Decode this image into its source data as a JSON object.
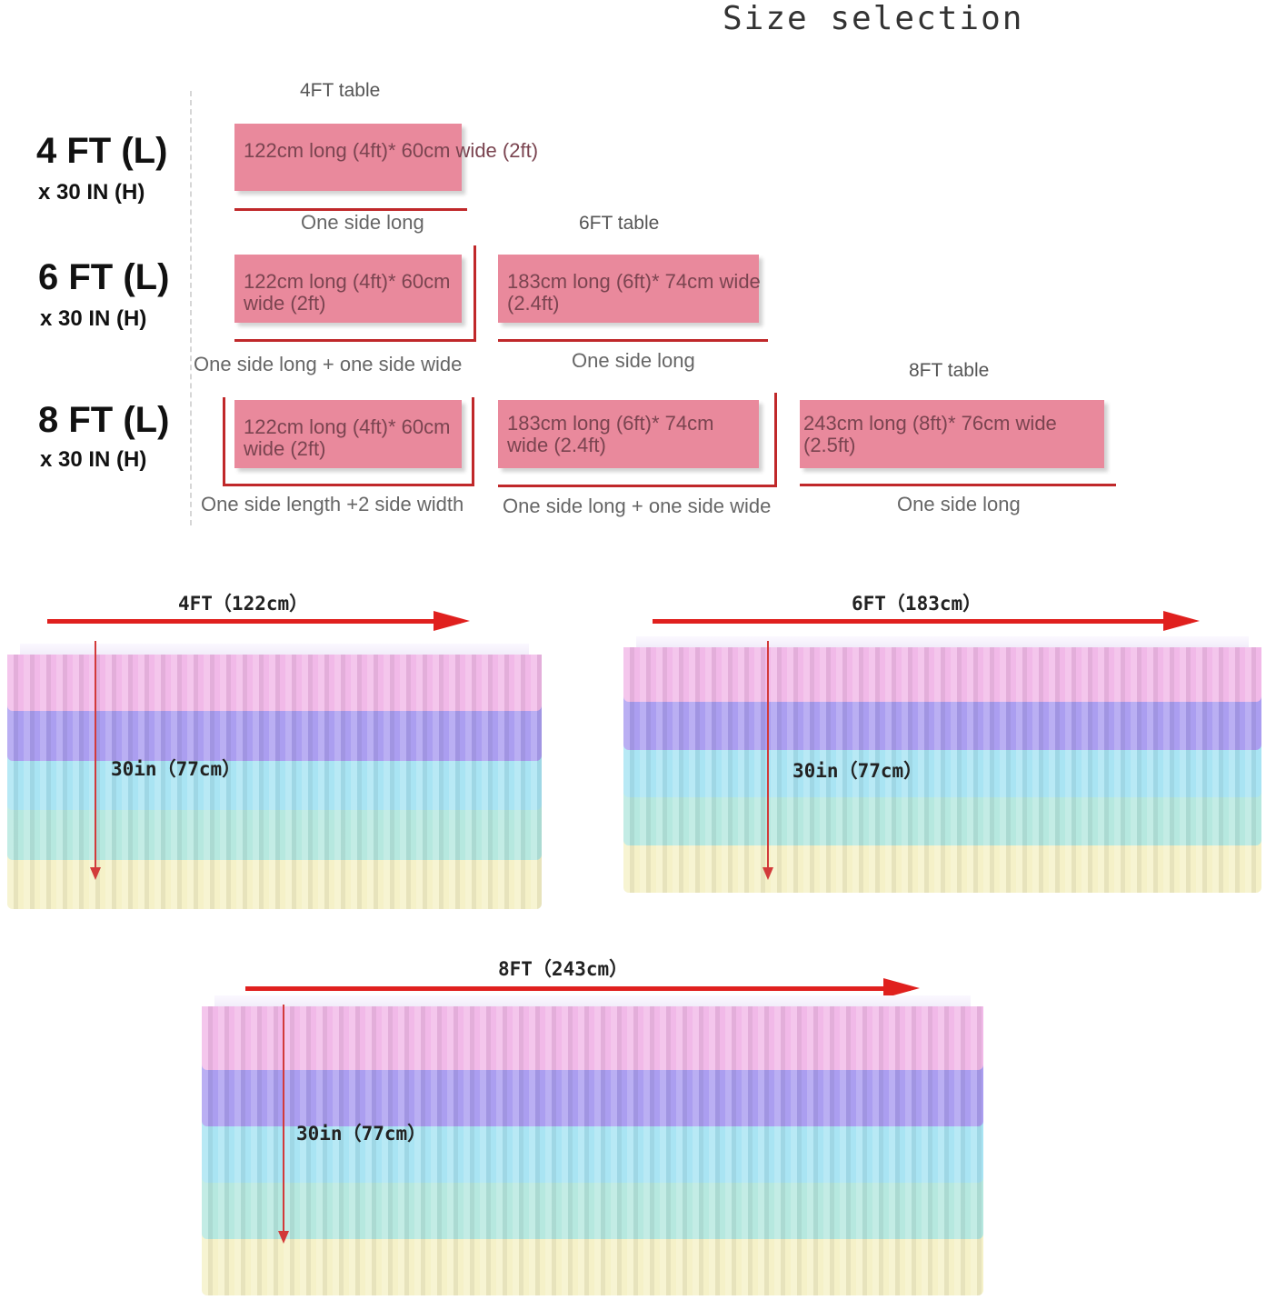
{
  "title": "Size selection",
  "rows": [
    {
      "length": "4 FT (L)",
      "height": "x 30 IN (H)"
    },
    {
      "length": "6 FT (L)",
      "height": "x 30 IN (H)"
    },
    {
      "length": "8 FT (L)",
      "height": "x 30 IN (H)"
    }
  ],
  "tables": {
    "t4": "4FT table",
    "t6": "6FT table",
    "t8": "8FT table"
  },
  "boxes": {
    "r1a": "122cm long (4ft)* 60cm wide (2ft)",
    "r2a_1": "122cm long (4ft)* 60cm",
    "r2a_2": "wide (2ft)",
    "r2b_1": "183cm long (6ft)* 74cm wide",
    "r2b_2": "(2.4ft)",
    "r3a_1": "122cm long (4ft)* 60cm",
    "r3a_2": "wide (2ft)",
    "r3b_1": "183cm long (6ft)* 74cm",
    "r3b_2": "wide (2.4ft)",
    "r3c_1": "243cm long (8ft)* 76cm wide",
    "r3c_2": "(2.5ft)"
  },
  "captions": {
    "r1a": "One side long",
    "r2a": "One side long + one side wide",
    "r2b": "One side long",
    "r3a": "One side length +2 side width",
    "r3b": "One side long + one side wide",
    "r3c": "One side long"
  },
  "skirts": [
    {
      "width_label": "4FT（122cm）",
      "height_label": "30in（77cm）"
    },
    {
      "width_label": "6FT（183cm）",
      "height_label": "30in（77cm）"
    },
    {
      "width_label": "8FT（243cm）",
      "height_label": "30in（77cm）"
    }
  ],
  "colors": {
    "box": "#e9899c",
    "line": "#c0282a",
    "tiers": [
      "#f1b9e8",
      "#ab9ef0",
      "#a9e4f3",
      "#b6e8df",
      "#f5f1c8"
    ]
  }
}
